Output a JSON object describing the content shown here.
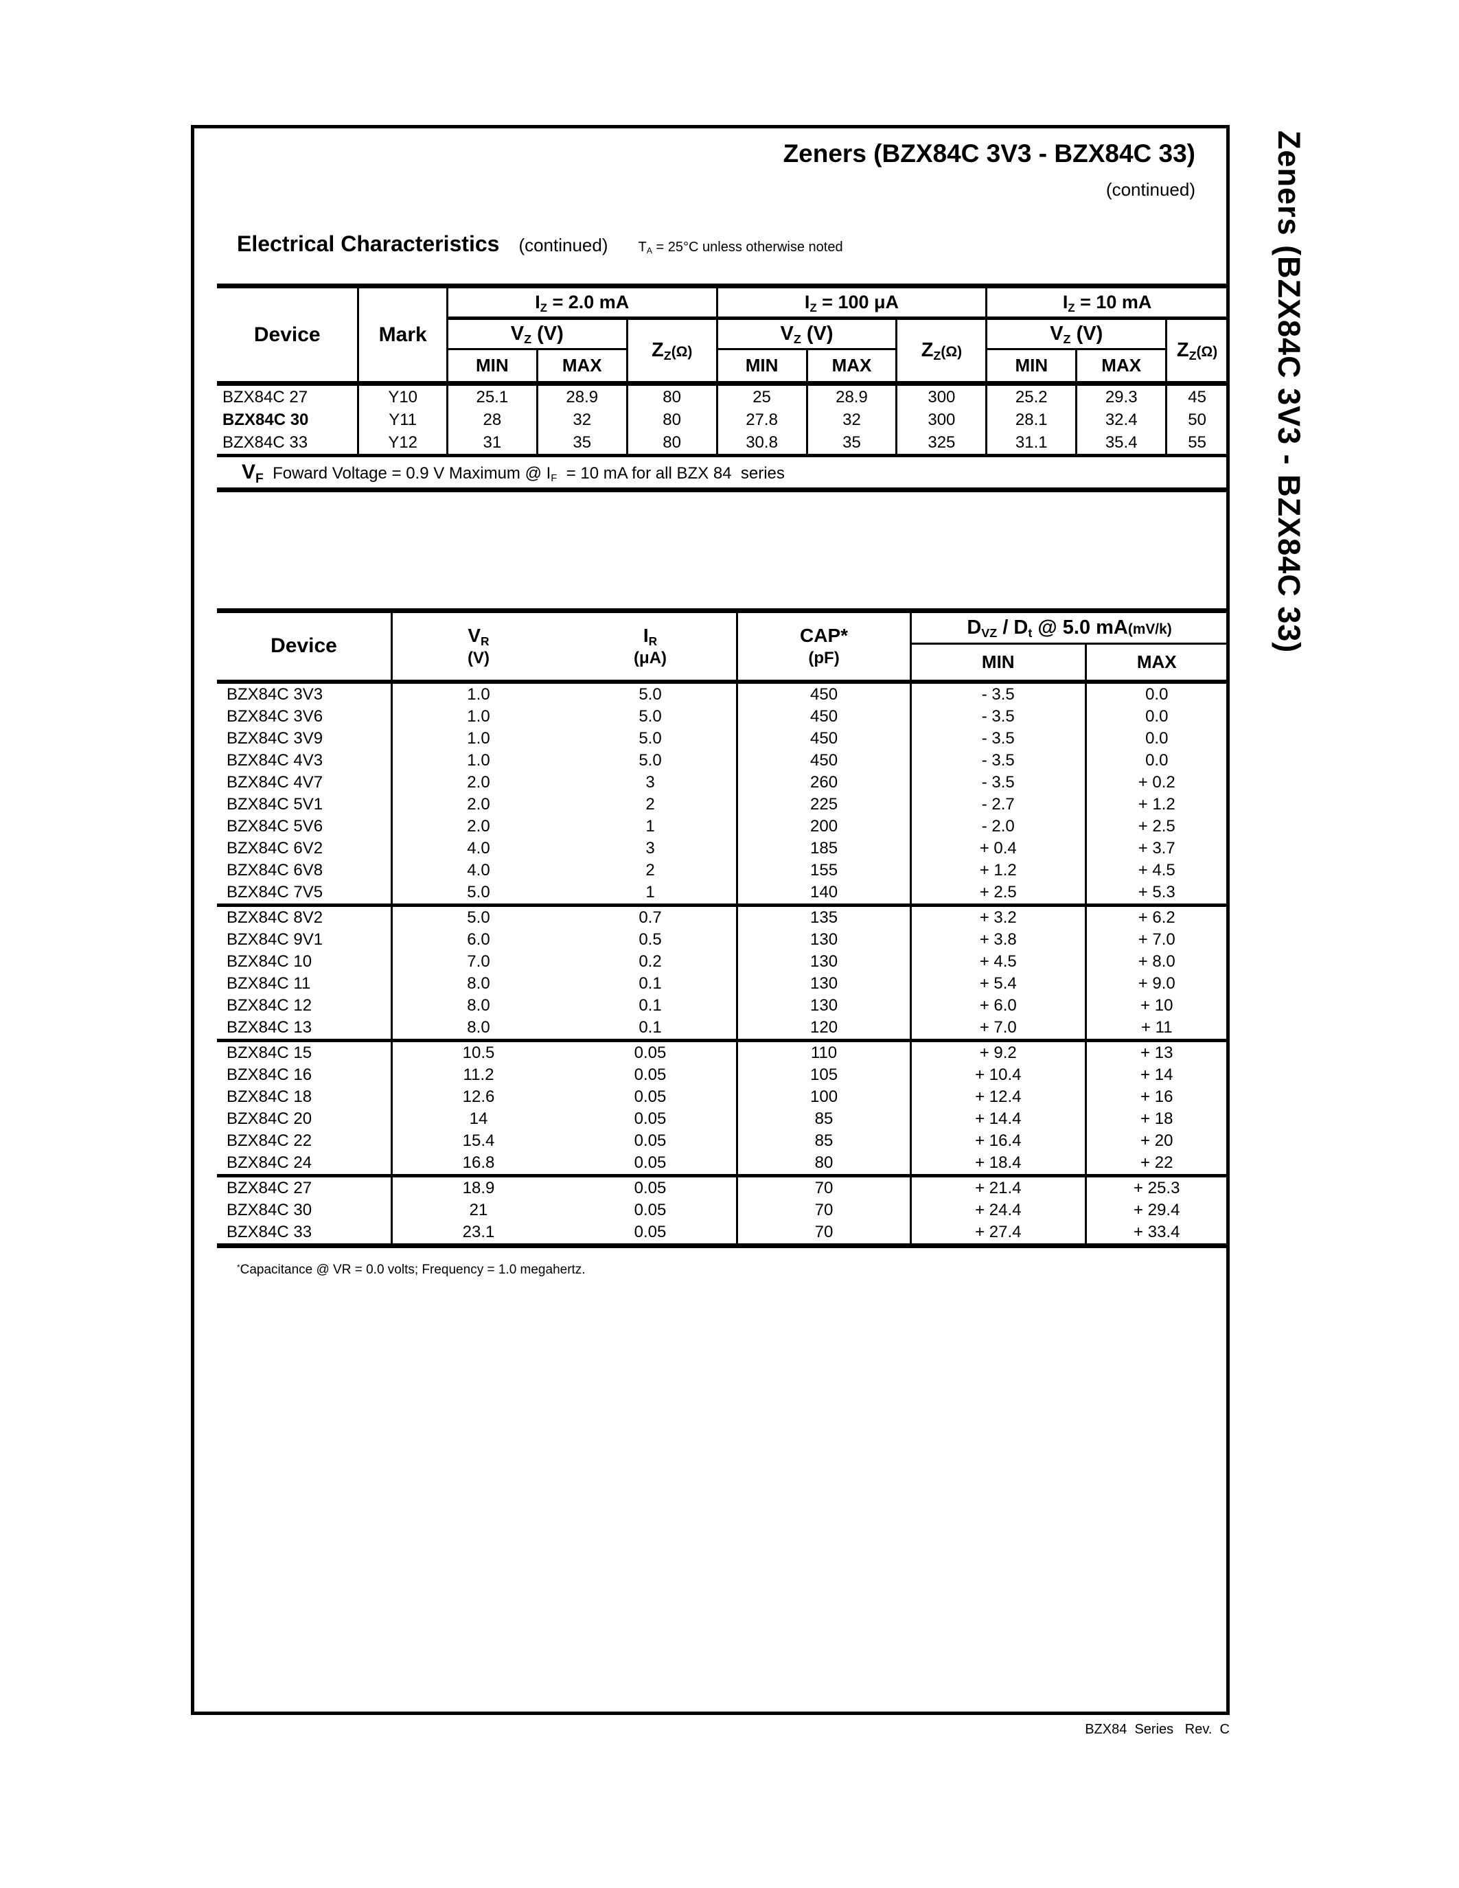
{
  "page": {
    "title": "Zeners (BZX84C 3V3 - BZX84C 33)",
    "continued": "(continued)",
    "sidebar": "Zeners (BZX84C  3V3 -  BZX84C  33)",
    "footer": "BZX84  Series   Rev.  C"
  },
  "section": {
    "heading": "Electrical Characteristics",
    "continued": "(continued)",
    "note": [
      [
        "t",
        "T"
      ],
      [
        "s",
        "A"
      ],
      [
        "t",
        " = 25°C unless otherwise noted"
      ]
    ]
  },
  "table1": {
    "device_header": "Device",
    "mark_header": "Mark",
    "min_label": "MIN",
    "max_label": "MAX",
    "group_headers": [
      [
        [
          "t",
          "I"
        ],
        [
          "s",
          "Z"
        ],
        [
          "t",
          "  = 2.0 mA"
        ]
      ],
      [
        [
          "t",
          "I"
        ],
        [
          "s",
          "Z"
        ],
        [
          "t",
          "  = 100 μA"
        ]
      ],
      [
        [
          "t",
          "I"
        ],
        [
          "s",
          "Z"
        ],
        [
          "t",
          "  = 10 mA"
        ]
      ]
    ],
    "vz_header": [
      [
        "t",
        "V"
      ],
      [
        "s",
        "Z"
      ],
      [
        "t",
        " (V)"
      ]
    ],
    "zz_header": [
      [
        "t",
        "Z"
      ],
      [
        "s",
        "Z"
      ],
      [
        "m",
        "(Ω)"
      ]
    ],
    "rows": [
      {
        "device": "BZX84C 27",
        "mark": "Y10",
        "c": [
          "25.1",
          "28.9",
          "80",
          "25",
          "28.9",
          "300",
          "25.2",
          "29.3",
          "45"
        ]
      },
      {
        "device": "BZX84C 30",
        "mark": "Y11",
        "c": [
          "28",
          "32",
          "80",
          "27.8",
          "32",
          "300",
          "28.1",
          "32.4",
          "50"
        ]
      },
      {
        "device": "BZX84C 33",
        "mark": "Y12",
        "c": [
          "31",
          "35",
          "80",
          "30.8",
          "35",
          "325",
          "31.1",
          "35.4",
          "55"
        ]
      }
    ],
    "vf_note": [
      [
        "b",
        "V"
      ],
      [
        "bs",
        "F"
      ],
      [
        "t",
        "  Foward Voltage = 0.9 V Maximum @ I"
      ],
      [
        "s",
        "F"
      ],
      [
        "t",
        "  = 10 mA for all BZX 84  series"
      ]
    ]
  },
  "table2": {
    "device_header": "Device",
    "vr_header": [
      [
        "t",
        "V"
      ],
      [
        "s",
        "R"
      ]
    ],
    "vr_unit": "(V)",
    "ir_header": [
      [
        "t",
        "I"
      ],
      [
        "s",
        "R"
      ]
    ],
    "ir_unit": "(μA)",
    "cap_header": "CAP*",
    "cap_unit": "(pF)",
    "dvz_header": [
      [
        "t",
        "D"
      ],
      [
        "s",
        "VZ"
      ],
      [
        "t",
        " / D"
      ],
      [
        "s",
        "t"
      ],
      [
        "t",
        " @ 5.0 mA"
      ],
      [
        "m",
        "(mV/k)"
      ]
    ],
    "min_label": "MIN",
    "max_label": "MAX",
    "rows": [
      {
        "device": "BZX84C 3V3",
        "vr": "1.0",
        "ir": "5.0",
        "cap": "450",
        "min": "- 3.5",
        "max": "0.0"
      },
      {
        "device": "BZX84C 3V6",
        "vr": "1.0",
        "ir": "5.0",
        "cap": "450",
        "min": "- 3.5",
        "max": "0.0"
      },
      {
        "device": "BZX84C 3V9",
        "vr": "1.0",
        "ir": "5.0",
        "cap": "450",
        "min": "- 3.5",
        "max": "0.0"
      },
      {
        "device": "BZX84C 4V3",
        "vr": "1.0",
        "ir": "5.0",
        "cap": "450",
        "min": "- 3.5",
        "max": "0.0"
      },
      {
        "device": "BZX84C 4V7",
        "vr": "2.0",
        "ir": "3",
        "cap": "260",
        "min": "- 3.5",
        "max": "+ 0.2"
      },
      {
        "device": "BZX84C 5V1",
        "vr": "2.0",
        "ir": "2",
        "cap": "225",
        "min": "- 2.7",
        "max": "+ 1.2"
      },
      {
        "device": "BZX84C 5V6",
        "vr": "2.0",
        "ir": "1",
        "cap": "200",
        "min": "- 2.0",
        "max": "+ 2.5"
      },
      {
        "device": "BZX84C 6V2",
        "vr": "4.0",
        "ir": "3",
        "cap": "185",
        "min": "+ 0.4",
        "max": "+ 3.7"
      },
      {
        "device": "BZX84C 6V8",
        "vr": "4.0",
        "ir": "2",
        "cap": "155",
        "min": "+ 1.2",
        "max": "+ 4.5"
      },
      {
        "device": "BZX84C 7V5",
        "vr": "5.0",
        "ir": "1",
        "cap": "140",
        "min": "+ 2.5",
        "max": "+ 5.3"
      },
      {
        "device": "BZX84C 8V2",
        "vr": "5.0",
        "ir": "0.7",
        "cap": "135",
        "min": "+ 3.2",
        "max": "+ 6.2",
        "group_start": true
      },
      {
        "device": "BZX84C 9V1",
        "vr": "6.0",
        "ir": "0.5",
        "cap": "130",
        "min": "+ 3.8",
        "max": "+ 7.0"
      },
      {
        "device": "BZX84C 10",
        "vr": "7.0",
        "ir": "0.2",
        "cap": "130",
        "min": "+ 4.5",
        "max": "+ 8.0"
      },
      {
        "device": "BZX84C 11",
        "vr": "8.0",
        "ir": "0.1",
        "cap": "130",
        "min": "+ 5.4",
        "max": "+ 9.0"
      },
      {
        "device": "BZX84C 12",
        "vr": "8.0",
        "ir": "0.1",
        "cap": "130",
        "min": "+ 6.0",
        "max": "+ 10"
      },
      {
        "device": "BZX84C 13",
        "vr": "8.0",
        "ir": "0.1",
        "cap": "120",
        "min": "+ 7.0",
        "max": "+ 11"
      },
      {
        "device": "BZX84C 15",
        "vr": "10.5",
        "ir": "0.05",
        "cap": "110",
        "min": "+ 9.2",
        "max": "+ 13",
        "group_start": true
      },
      {
        "device": "BZX84C 16",
        "vr": "11.2",
        "ir": "0.05",
        "cap": "105",
        "min": "+ 10.4",
        "max": "+ 14"
      },
      {
        "device": "BZX84C 18",
        "vr": "12.6",
        "ir": "0.05",
        "cap": "100",
        "min": "+ 12.4",
        "max": "+ 16"
      },
      {
        "device": "BZX84C 20",
        "vr": "14",
        "ir": "0.05",
        "cap": "85",
        "min": "+ 14.4",
        "max": "+ 18"
      },
      {
        "device": "BZX84C 22",
        "vr": "15.4",
        "ir": "0.05",
        "cap": "85",
        "min": "+ 16.4",
        "max": "+ 20"
      },
      {
        "device": "BZX84C 24",
        "vr": "16.8",
        "ir": "0.05",
        "cap": "80",
        "min": "+ 18.4",
        "max": "+ 22"
      },
      {
        "device": "BZX84C 27",
        "vr": "18.9",
        "ir": "0.05",
        "cap": "70",
        "min": "+ 21.4",
        "max": "+ 25.3",
        "group_start": true
      },
      {
        "device": "BZX84C 30",
        "vr": "21",
        "ir": "0.05",
        "cap": "70",
        "min": "+ 24.4",
        "max": "+ 29.4"
      },
      {
        "device": "BZX84C 33",
        "vr": "23.1",
        "ir": "0.05",
        "cap": "70",
        "min": "+ 27.4",
        "max": "+ 33.4"
      }
    ],
    "footnote": [
      [
        "p",
        "*"
      ],
      [
        "t",
        "Capacitance @ VR = 0.0 volts; Frequency = 1.0 megahertz."
      ]
    ]
  }
}
